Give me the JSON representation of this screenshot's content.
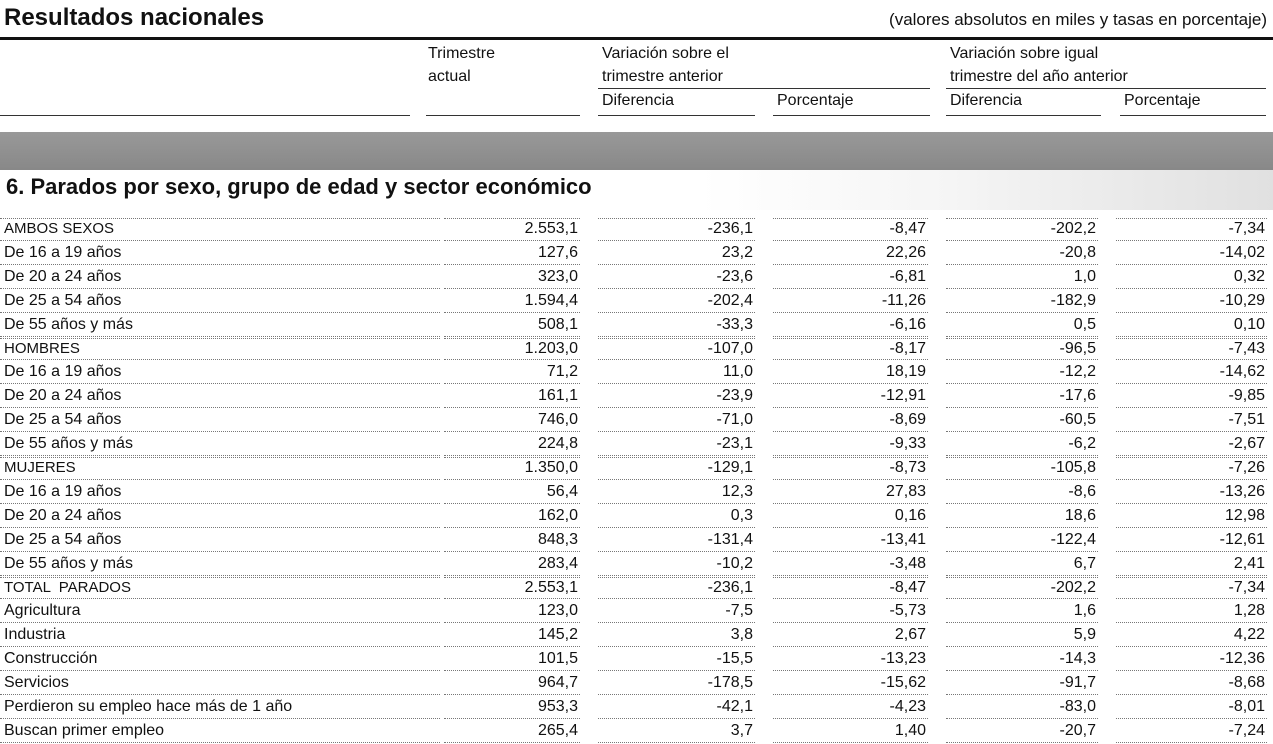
{
  "header": {
    "title": "Resultados nacionales",
    "note": "(valores absolutos en miles y tasas en porcentaje)",
    "current": [
      "Trimestre",
      "actual"
    ],
    "prev_quarter": {
      "lines": [
        "Variación sobre el",
        "trimestre anterior"
      ],
      "sub": [
        "Diferencia",
        "Porcentaje"
      ]
    },
    "prev_year": {
      "lines": [
        "Variación sobre igual",
        "trimestre del año anterior"
      ],
      "sub": [
        "Diferencia",
        "Porcentaje"
      ]
    }
  },
  "section": {
    "title": "6. Parados por sexo, grupo de edad y sector económico"
  },
  "table": {
    "rows": [
      [
        "AMBOS SEXOS",
        "2.553,1",
        "-236,1",
        "-8,47",
        "-202,2",
        "-7,34"
      ],
      [
        "De 16 a 19 años",
        "127,6",
        "23,2",
        "22,26",
        "-20,8",
        "-14,02"
      ],
      [
        "De 20 a 24 años",
        "323,0",
        "-23,6",
        "-6,81",
        "1,0",
        "0,32"
      ],
      [
        "De 25 a 54 años",
        "1.594,4",
        "-202,4",
        "-11,26",
        "-182,9",
        "-10,29"
      ],
      [
        "De 55 años y más",
        "508,1",
        "-33,3",
        "-6,16",
        "0,5",
        "0,10"
      ],
      [
        "HOMBRES",
        "1.203,0",
        "-107,0",
        "-8,17",
        "-96,5",
        "-7,43"
      ],
      [
        "De 16 a 19 años",
        "71,2",
        "11,0",
        "18,19",
        "-12,2",
        "-14,62"
      ],
      [
        "De 20 a 24 años",
        "161,1",
        "-23,9",
        "-12,91",
        "-17,6",
        "-9,85"
      ],
      [
        "De 25 a 54 años",
        "746,0",
        "-71,0",
        "-8,69",
        "-60,5",
        "-7,51"
      ],
      [
        "De 55 años y más",
        "224,8",
        "-23,1",
        "-9,33",
        "-6,2",
        "-2,67"
      ],
      [
        "MUJERES",
        "1.350,0",
        "-129,1",
        "-8,73",
        "-105,8",
        "-7,26"
      ],
      [
        "De 16 a 19 años",
        "56,4",
        "12,3",
        "27,83",
        "-8,6",
        "-13,26"
      ],
      [
        "De 20 a 24 años",
        "162,0",
        "0,3",
        "0,16",
        "18,6",
        "12,98"
      ],
      [
        "De 25 a 54 años",
        "848,3",
        "-131,4",
        "-13,41",
        "-122,4",
        "-12,61"
      ],
      [
        "De 55 años y más",
        "283,4",
        "-10,2",
        "-3,48",
        "6,7",
        "2,41"
      ],
      [
        "TOTAL  PARADOS",
        "2.553,1",
        "-236,1",
        "-8,47",
        "-202,2",
        "-7,34"
      ],
      [
        "Agricultura",
        "123,0",
        "-7,5",
        "-5,73",
        "1,6",
        "1,28"
      ],
      [
        "Industria",
        "145,2",
        "3,8",
        "2,67",
        "5,9",
        "4,22"
      ],
      [
        "Construcción",
        "101,5",
        "-15,5",
        "-13,23",
        "-14,3",
        "-12,36"
      ],
      [
        "Servicios",
        "964,7",
        "-178,5",
        "-15,62",
        "-91,7",
        "-8,68"
      ],
      [
        "Perdieron su empleo hace más de 1 año",
        "953,3",
        "-42,1",
        "-4,23",
        "-83,0",
        "-8,01"
      ],
      [
        "Buscan primer empleo",
        "265,4",
        "3,7",
        "1,40",
        "-20,7",
        "-7,24"
      ]
    ]
  }
}
